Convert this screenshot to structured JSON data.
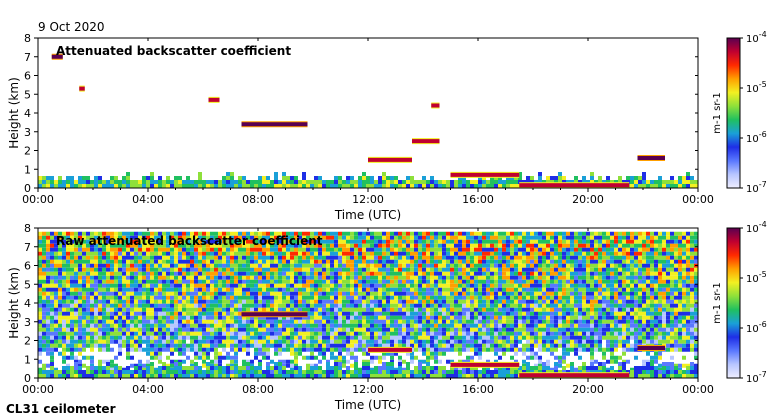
{
  "header": {
    "date": "9 Oct 2020"
  },
  "footer": {
    "instrument": "CL31 ceilometer"
  },
  "colors": {
    "colormap": [
      "#efefff",
      "#b8c6ff",
      "#5a78ff",
      "#1e2ee6",
      "#1aa0d8",
      "#20c060",
      "#8ee03a",
      "#f2f022",
      "#ffa000",
      "#ff2a00",
      "#c00030",
      "#5a0050"
    ],
    "accent": "#000000"
  },
  "chart_data": [
    {
      "type": "heatmap",
      "title": "Attenuated backscatter coefficient",
      "xlabel": "Time (UTC)",
      "ylabel": "Height (km)",
      "x_ticks": [
        "00:00",
        "04:00",
        "08:00",
        "12:00",
        "16:00",
        "20:00",
        "00:00"
      ],
      "x_range_hours": [
        0,
        24
      ],
      "y_ticks": [
        "0",
        "1",
        "2",
        "3",
        "4",
        "5",
        "6",
        "7",
        "8"
      ],
      "ylim": [
        0,
        8
      ],
      "colorbar": {
        "label": "m-1 sr-1",
        "ticks": [
          "10",
          "10",
          "10",
          "10"
        ],
        "exponents": [
          "-4",
          "-5",
          "-6",
          "-7"
        ]
      },
      "features": [
        {
          "kind": "boundary layer",
          "start_h": 0,
          "end_h": 24,
          "top_km": 0.6,
          "level": 0.3
        },
        {
          "kind": "cloud layer",
          "start_h": 0.5,
          "end_h": 0.9,
          "height_km": 7.0,
          "level": 0.95
        },
        {
          "kind": "cloud layer",
          "start_h": 1.5,
          "end_h": 1.7,
          "height_km": 5.3,
          "level": 0.85
        },
        {
          "kind": "cloud layer",
          "start_h": 6.2,
          "end_h": 6.6,
          "height_km": 4.7,
          "level": 0.9
        },
        {
          "kind": "cloud layer",
          "start_h": 7.4,
          "end_h": 9.8,
          "height_km": 3.4,
          "level": 0.95
        },
        {
          "kind": "cloud layer",
          "start_h": 12.0,
          "end_h": 13.6,
          "height_km": 1.5,
          "level": 0.9
        },
        {
          "kind": "cloud layer",
          "start_h": 13.6,
          "end_h": 14.6,
          "height_km": 2.5,
          "level": 0.9
        },
        {
          "kind": "cloud layer",
          "start_h": 14.3,
          "end_h": 14.6,
          "height_km": 4.4,
          "level": 0.85
        },
        {
          "kind": "cloud layer",
          "start_h": 15.0,
          "end_h": 17.5,
          "height_km": 0.7,
          "level": 0.9
        },
        {
          "kind": "cloud layer",
          "start_h": 17.5,
          "end_h": 21.5,
          "height_km": 0.15,
          "level": 0.9
        },
        {
          "kind": "cloud layer",
          "start_h": 21.8,
          "end_h": 22.8,
          "height_km": 1.6,
          "level": 0.95
        }
      ]
    },
    {
      "type": "heatmap",
      "title": "Raw attenuated backscatter coefficient",
      "xlabel": "Time (UTC)",
      "ylabel": "Height (km)",
      "x_ticks": [
        "00:00",
        "04:00",
        "08:00",
        "12:00",
        "16:00",
        "20:00",
        "00:00"
      ],
      "x_range_hours": [
        0,
        24
      ],
      "y_ticks": [
        "0",
        "1",
        "2",
        "3",
        "4",
        "5",
        "6",
        "7",
        "8"
      ],
      "ylim": [
        0,
        8
      ],
      "colorbar": {
        "label": "m-1 sr-1",
        "ticks": [
          "10",
          "10",
          "10",
          "10"
        ],
        "exponents": [
          "-4",
          "-5",
          "-6",
          "-7"
        ]
      },
      "features": [
        {
          "kind": "noise field",
          "start_h": 0,
          "end_h": 24,
          "top_km": 7.8,
          "level": 0.55
        },
        {
          "kind": "boundary layer",
          "start_h": 0,
          "end_h": 24,
          "top_km": 0.7,
          "level": 0.25
        },
        {
          "kind": "cloud layer",
          "start_h": 7.4,
          "end_h": 9.8,
          "height_km": 3.4,
          "level": 0.95
        },
        {
          "kind": "cloud layer",
          "start_h": 12.0,
          "end_h": 13.6,
          "height_km": 1.5,
          "level": 0.9
        },
        {
          "kind": "cloud layer",
          "start_h": 15.0,
          "end_h": 17.5,
          "height_km": 0.7,
          "level": 0.9
        },
        {
          "kind": "cloud layer",
          "start_h": 17.5,
          "end_h": 21.5,
          "height_km": 0.15,
          "level": 0.9
        },
        {
          "kind": "cloud layer",
          "start_h": 21.8,
          "end_h": 22.8,
          "height_km": 1.6,
          "level": 0.95
        }
      ]
    }
  ]
}
